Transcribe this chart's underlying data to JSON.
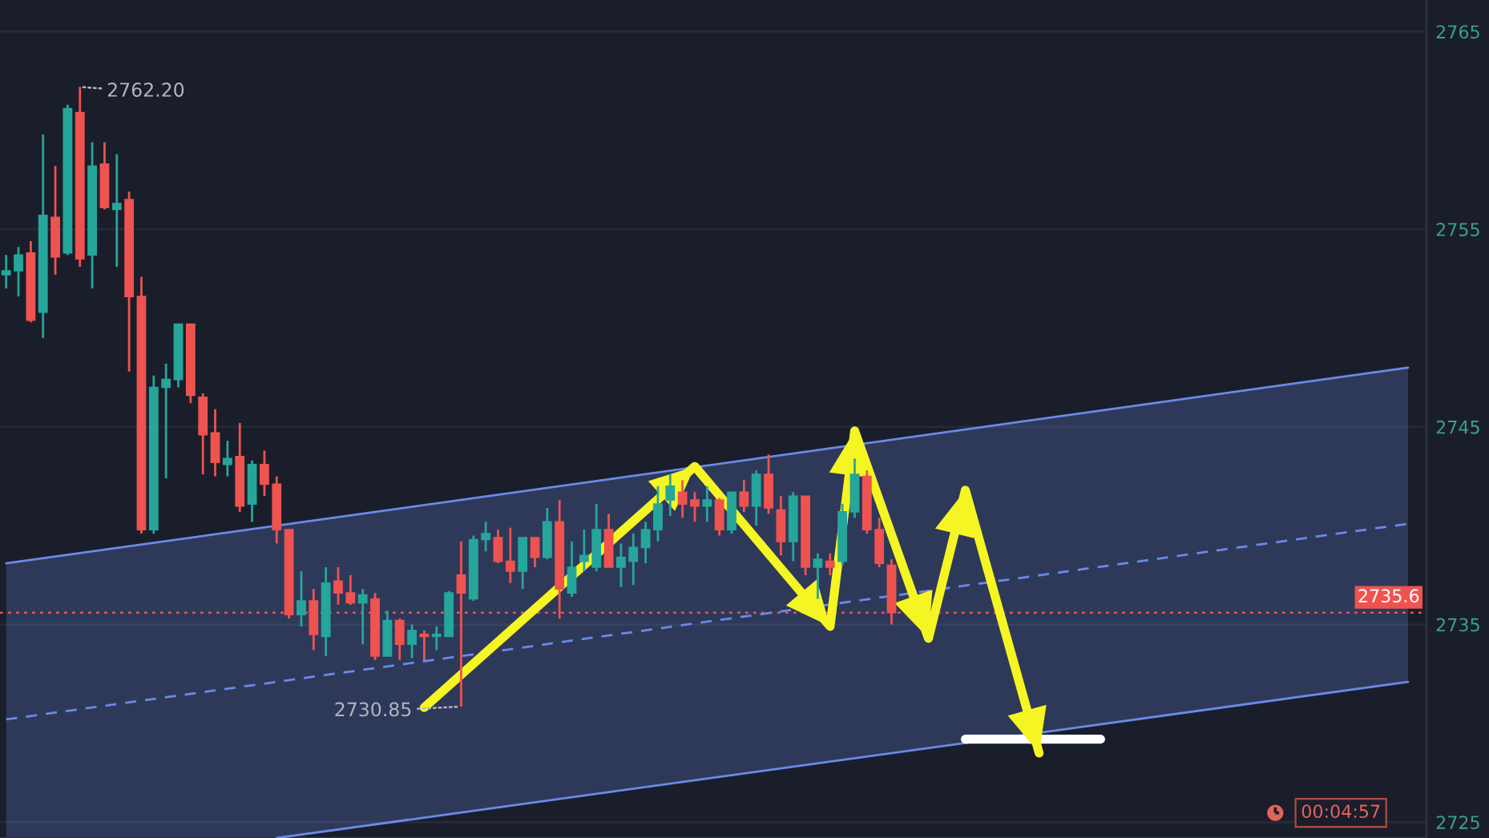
{
  "chart_data": {
    "type": "candlestick",
    "categories": [
      null,
      null,
      null,
      null,
      null,
      null,
      null,
      null,
      null,
      null,
      null,
      null,
      null,
      null,
      null,
      null,
      null,
      null,
      null,
      null,
      null,
      null,
      null,
      null,
      null,
      null,
      null,
      null,
      null,
      null,
      null,
      null,
      null,
      null,
      null,
      null,
      null,
      null,
      null,
      null,
      null,
      null,
      null,
      null,
      null,
      null,
      null,
      null,
      null,
      null,
      null,
      null,
      null,
      null,
      null,
      null,
      null,
      null,
      null,
      null,
      null,
      null,
      null,
      null,
      null,
      null,
      null,
      null,
      null,
      null,
      null,
      null,
      null,
      null,
      null,
      null,
      null,
      null,
      null,
      null,
      null,
      null,
      null,
      null,
      null,
      null,
      null,
      null,
      null,
      null,
      null,
      null,
      null,
      null,
      null,
      null,
      null,
      null,
      null,
      null,
      null,
      null,
      null,
      null,
      null,
      null,
      null,
      null,
      null,
      null,
      null,
      null,
      null,
      null,
      null,
      null
    ],
    "ohlc": [
      [
        2752.7,
        2753.7,
        2752.0,
        2752.9
      ],
      [
        2752.9,
        2754.1,
        2751.6,
        2753.7
      ],
      [
        2753.8,
        2754.4,
        2750.3,
        2750.4
      ],
      [
        2750.8,
        2759.8,
        2749.5,
        2755.7
      ],
      [
        2755.6,
        2758.2,
        2752.7,
        2753.6
      ],
      [
        2753.8,
        2761.3,
        2753.7,
        2761.1
      ],
      [
        2760.9,
        2762.2,
        2753.1,
        2753.5
      ],
      [
        2753.7,
        2759.4,
        2752.0,
        2758.2
      ],
      [
        2758.3,
        2759.4,
        2756.0,
        2756.1
      ],
      [
        2756.0,
        2758.8,
        2753.1,
        2756.3
      ],
      [
        2756.5,
        2756.9,
        2747.8,
        2751.6
      ],
      [
        2751.6,
        2752.6,
        2739.6,
        2739.8
      ],
      [
        2739.8,
        2747.6,
        2739.6,
        2747.0
      ],
      [
        2747.0,
        2748.2,
        2742.4,
        2747.4
      ],
      [
        2747.4,
        2750.2,
        2747.0,
        2750.2
      ],
      [
        2750.2,
        2750.2,
        2746.2,
        2746.6
      ],
      [
        2746.5,
        2746.7,
        2742.6,
        2744.6
      ],
      [
        2744.7,
        2745.9,
        2742.5,
        2743.2
      ],
      [
        2743.1,
        2744.3,
        2742.5,
        2743.4
      ],
      [
        2743.5,
        2745.2,
        2740.7,
        2741.0
      ],
      [
        2741.1,
        2743.3,
        2740.2,
        2743.1
      ],
      [
        2743.1,
        2743.8,
        2741.5,
        2742.1
      ],
      [
        2742.1,
        2742.5,
        2739.1,
        2739.8
      ],
      [
        2739.8,
        2739.8,
        2735.3,
        2735.5
      ],
      [
        2735.5,
        2737.7,
        2734.9,
        2736.2
      ],
      [
        2736.2,
        2736.8,
        2733.7,
        2734.5
      ],
      [
        2734.4,
        2737.9,
        2733.4,
        2737.1
      ],
      [
        2737.2,
        2737.9,
        2736.0,
        2736.6
      ],
      [
        2736.6,
        2737.5,
        2736.0,
        2736.1
      ],
      [
        2736.1,
        2736.8,
        2734.0,
        2736.5
      ],
      [
        2736.3,
        2736.6,
        2733.2,
        2733.4
      ],
      [
        2733.4,
        2735.7,
        2733.4,
        2735.2
      ],
      [
        2735.2,
        2735.3,
        2733.2,
        2734.0
      ],
      [
        2734.0,
        2735.0,
        2733.3,
        2734.7
      ],
      [
        2734.5,
        2734.7,
        2733.2,
        2734.4
      ],
      [
        2734.4,
        2734.9,
        2733.7,
        2734.5
      ],
      [
        2734.4,
        2736.7,
        2734.4,
        2736.6
      ],
      [
        2737.5,
        2739.2,
        2730.85,
        2736.6
      ],
      [
        2736.3,
        2739.5,
        2736.2,
        2739.3
      ],
      [
        2739.3,
        2740.2,
        2738.7,
        2739.6
      ],
      [
        2739.4,
        2739.8,
        2738.1,
        2738.2
      ],
      [
        2738.2,
        2739.9,
        2737.1,
        2737.7
      ],
      [
        2737.7,
        2739.4,
        2736.8,
        2739.4
      ],
      [
        2739.4,
        2739.4,
        2737.9,
        2738.4
      ],
      [
        2738.4,
        2740.9,
        2738.3,
        2740.2
      ],
      [
        2740.2,
        2741.3,
        2735.3,
        2736.8
      ],
      [
        2736.6,
        2739.2,
        2736.4,
        2737.9
      ],
      [
        2738.2,
        2739.8,
        2737.7,
        2738.5
      ],
      [
        2737.9,
        2741.1,
        2737.7,
        2739.8
      ],
      [
        2739.8,
        2740.6,
        2737.9,
        2737.9
      ],
      [
        2737.9,
        2739.1,
        2736.9,
        2738.4
      ],
      [
        2738.2,
        2739.6,
        2737.0,
        2738.9
      ],
      [
        2738.9,
        2740.2,
        2738.1,
        2739.8
      ],
      [
        2739.8,
        2742.0,
        2739.2,
        2741.1
      ],
      [
        2741.3,
        2742.6,
        2740.5,
        2742.0
      ],
      [
        2741.7,
        2742.3,
        2740.4,
        2741.1
      ],
      [
        2741.3,
        2741.7,
        2740.2,
        2741.0
      ],
      [
        2741.0,
        2742.0,
        2740.2,
        2741.3
      ],
      [
        2741.3,
        2741.4,
        2739.5,
        2739.8
      ],
      [
        2739.8,
        2741.7,
        2739.6,
        2741.7
      ],
      [
        2741.7,
        2742.3,
        2740.7,
        2741.0
      ],
      [
        2741.0,
        2742.8,
        2740.0,
        2742.6
      ],
      [
        2742.6,
        2743.6,
        2740.6,
        2740.9
      ],
      [
        2740.8,
        2741.5,
        2738.5,
        2739.2
      ],
      [
        2739.2,
        2741.7,
        2738.2,
        2741.5
      ],
      [
        2741.5,
        2741.5,
        2737.5,
        2737.9
      ],
      [
        2737.9,
        2738.6,
        2736.3,
        2738.3
      ],
      [
        2738.2,
        2738.6,
        2737.5,
        2737.9
      ],
      [
        2738.2,
        2741.1,
        2738.0,
        2740.7
      ],
      [
        2740.7,
        2743.4,
        2740.4,
        2742.6
      ],
      [
        2742.5,
        2742.8,
        2739.6,
        2739.8
      ],
      [
        2739.8,
        2740.4,
        2737.9,
        2738.1
      ],
      [
        2738.0,
        2738.3,
        2735.0,
        2735.6
      ],
      null,
      null,
      null,
      null,
      null,
      null,
      null,
      null,
      null,
      null,
      null,
      null,
      null,
      null,
      null,
      null,
      null,
      null,
      null,
      null,
      null,
      null,
      null,
      null,
      null,
      null,
      null,
      null,
      null,
      null,
      null,
      null,
      null,
      null,
      null,
      null,
      null,
      null,
      null,
      null,
      null,
      null,
      null
    ],
    "colors": [
      "#26a69a",
      "#26a69a",
      "#ef5350",
      "#26a69a",
      "#ef5350",
      "#26a69a",
      "#ef5350",
      "#26a69a",
      "#ef5350",
      "#26a69a",
      "#ef5350",
      "#ef5350",
      "#26a69a",
      "#26a69a",
      "#26a69a",
      "#ef5350",
      "#ef5350",
      "#ef5350",
      "#26a69a",
      "#ef5350",
      "#26a69a",
      "#ef5350",
      "#ef5350",
      "#ef5350",
      "#26a69a",
      "#ef5350",
      "#26a69a",
      "#ef5350",
      "#ef5350",
      "#26a69a",
      "#ef5350",
      "#26a69a",
      "#ef5350",
      "#26a69a",
      "#ef5350",
      "#26a69a",
      "#26a69a",
      "#ef5350",
      "#26a69a",
      "#26a69a",
      "#ef5350",
      "#ef5350",
      "#26a69a",
      "#ef5350",
      "#26a69a",
      "#ef5350",
      "#26a69a",
      "#26a69a",
      "#26a69a",
      "#ef5350",
      "#26a69a",
      "#26a69a",
      "#26a69a",
      "#26a69a",
      "#26a69a",
      "#ef5350",
      "#ef5350",
      "#26a69a",
      "#ef5350",
      "#26a69a",
      "#ef5350",
      "#26a69a",
      "#ef5350",
      "#ef5350",
      "#26a69a",
      "#ef5350",
      "#26a69a",
      "#ef5350",
      "#26a69a",
      "#26a69a",
      "#ef5350",
      "#ef5350",
      "#ef5350",
      null,
      null,
      null,
      null,
      null,
      null,
      null,
      null,
      null,
      null,
      null,
      null,
      null,
      null,
      null,
      null,
      null,
      null,
      null,
      null,
      null,
      null,
      null,
      null,
      null,
      null,
      null,
      null,
      null,
      null,
      null,
      null,
      null,
      null,
      null,
      null,
      null,
      null,
      null,
      null,
      null,
      null,
      null
    ],
    "series": [
      {
        "type": "line",
        "color": "#6a8ae6",
        "line_style": "dashed",
        "values": [
          2730.2,
          null,
          null,
          null,
          null,
          null,
          null,
          null,
          null,
          null,
          null,
          null,
          null,
          null,
          null,
          null,
          null,
          null,
          null,
          null,
          null,
          null,
          2732.1,
          null,
          null,
          null,
          null,
          null,
          null,
          null,
          null,
          null,
          null,
          null,
          null,
          null,
          null,
          null,
          null,
          null,
          null,
          null,
          null,
          null,
          null,
          null,
          null,
          null,
          null,
          null,
          null,
          null,
          null,
          null,
          null,
          null,
          null,
          null,
          null,
          null,
          null,
          null,
          null,
          null,
          null,
          null,
          null,
          null,
          null,
          null,
          null,
          null,
          null,
          null,
          null,
          null,
          null,
          null,
          null,
          null,
          null,
          null,
          null,
          null,
          null,
          null,
          null,
          null,
          null,
          null,
          null,
          null,
          null,
          null,
          null,
          null,
          null,
          null,
          null,
          null,
          null,
          null,
          null,
          null,
          null,
          null,
          null,
          null,
          null,
          null,
          null,
          null,
          null,
          null,
          2740.1,
          null
        ],
        "lower": [
          2724.2,
          null,
          null,
          null,
          null,
          null,
          null,
          null,
          null,
          null,
          null,
          null,
          null,
          null,
          null,
          null,
          null,
          null,
          null,
          null,
          null,
          null,
          2724.2,
          null,
          null,
          null,
          null,
          null,
          null,
          null,
          null,
          null,
          null,
          null,
          null,
          null,
          null,
          null,
          null,
          null,
          null,
          null,
          null,
          null,
          null,
          null,
          null,
          null,
          null,
          null,
          null,
          null,
          null,
          null,
          null,
          null,
          null,
          null,
          null,
          null,
          null,
          null,
          null,
          null,
          null,
          null,
          null,
          null,
          null,
          null,
          null,
          null,
          null,
          null,
          null,
          null,
          null,
          null,
          null,
          null,
          null,
          null,
          null,
          null,
          null,
          null,
          null,
          null,
          null,
          null,
          null,
          null,
          null,
          null,
          null,
          null,
          null,
          null,
          null,
          null,
          null,
          null,
          null,
          null,
          null,
          null,
          null,
          null,
          null,
          null,
          null,
          null,
          null,
          null,
          2732.1,
          null
        ],
        "upper": [
          2738.1,
          null,
          null,
          null,
          null,
          null,
          null,
          null,
          null,
          null,
          null,
          null,
          null,
          null,
          null,
          null,
          null,
          null,
          null,
          null,
          null,
          null,
          2740.0,
          null,
          null,
          null,
          null,
          null,
          null,
          null,
          null,
          null,
          null,
          null,
          null,
          null,
          null,
          null,
          null,
          null,
          null,
          null,
          null,
          null,
          null,
          null,
          null,
          null,
          null,
          null,
          null,
          null,
          null,
          null,
          null,
          null,
          null,
          null,
          null,
          null,
          null,
          null,
          null,
          null,
          null,
          null,
          null,
          null,
          null,
          null,
          null,
          null,
          null,
          null,
          null,
          null,
          null,
          null,
          null,
          null,
          null,
          null,
          null,
          null,
          null,
          null,
          null,
          null,
          null,
          null,
          null,
          null,
          null,
          null,
          null,
          null,
          null,
          null,
          null,
          null,
          null,
          null,
          null,
          null,
          null,
          null,
          null,
          null,
          null,
          null,
          null,
          null,
          null,
          null,
          2748.0,
          null
        ]
      },
      {
        "type": "line",
        "color": "#6a8ae6",
        "line_style": "solid",
        "values": [
          2738.1,
          null,
          null,
          null,
          null,
          null,
          null,
          null,
          null,
          null,
          null,
          null,
          null,
          null,
          null,
          null,
          null,
          null,
          null,
          null,
          null,
          null,
          2740.0,
          null,
          null,
          null,
          null,
          null,
          null,
          null,
          null,
          null,
          null,
          null,
          null,
          null,
          null,
          null,
          null,
          null,
          null,
          null,
          null,
          null,
          null,
          null,
          null,
          null,
          null,
          null,
          null,
          null,
          null,
          null,
          null,
          null,
          null,
          null,
          null,
          null,
          null,
          null,
          null,
          null,
          null,
          null,
          null,
          null,
          null,
          null,
          null,
          null,
          null,
          null,
          null,
          null,
          null,
          null,
          null,
          null,
          null,
          null,
          null,
          null,
          null,
          null,
          null,
          null,
          null,
          null,
          null,
          null,
          null,
          null,
          null,
          null,
          null,
          null,
          null,
          null,
          null,
          null,
          null,
          null,
          null,
          null,
          null,
          null,
          null,
          null,
          null,
          null,
          null,
          null,
          2748.0,
          null
        ]
      },
      {
        "type": "line",
        "color": "#6a8ae6",
        "line_style": "solid",
        "values": [
          null,
          null,
          null,
          null,
          null,
          null,
          null,
          null,
          null,
          null,
          null,
          null,
          null,
          null,
          null,
          null,
          null,
          null,
          null,
          null,
          null,
          null,
          2724.2,
          null,
          null,
          null,
          null,
          null,
          null,
          null,
          null,
          null,
          null,
          null,
          null,
          null,
          null,
          null,
          null,
          null,
          null,
          null,
          null,
          null,
          null,
          null,
          null,
          null,
          null,
          null,
          null,
          null,
          null,
          null,
          null,
          null,
          null,
          null,
          null,
          null,
          null,
          null,
          null,
          null,
          null,
          null,
          null,
          null,
          null,
          null,
          null,
          null,
          null,
          null,
          null,
          null,
          null,
          null,
          null,
          null,
          null,
          null,
          null,
          null,
          null,
          null,
          null,
          null,
          null,
          null,
          null,
          null,
          null,
          null,
          null,
          null,
          null,
          null,
          null,
          null,
          null,
          null,
          null,
          null,
          null,
          null,
          null,
          null,
          null,
          null,
          null,
          null,
          null,
          null,
          2732.1,
          null
        ]
      },
      {
        "type": "line",
        "color": "#f5f523",
        "values": [
          null,
          null,
          null,
          null,
          null,
          null,
          null,
          null,
          null,
          null,
          null,
          null,
          null,
          null,
          null,
          null,
          null,
          null,
          null,
          null,
          null,
          null,
          null,
          null,
          null,
          null,
          null,
          null,
          null,
          null,
          null,
          null,
          null,
          null,
          2730.8,
          null,
          null,
          null,
          null,
          null,
          null,
          null,
          null,
          null,
          null,
          null,
          null,
          null,
          null,
          null,
          null,
          null,
          null,
          null,
          null,
          null,
          2743.0,
          null,
          null,
          null,
          null,
          null,
          null,
          null,
          null,
          null,
          null,
          2734.9,
          null,
          2744.8,
          null,
          null,
          null,
          null,
          null,
          2734.3,
          null,
          null,
          2741.8,
          null,
          null,
          null,
          null,
          null,
          2728.5,
          null,
          null,
          null,
          null,
          null,
          null,
          null,
          null,
          null,
          null,
          null,
          null,
          null,
          null,
          null,
          null,
          null,
          null,
          null,
          null,
          null,
          null,
          null,
          null,
          null,
          null,
          null,
          null,
          null,
          null,
          null
        ]
      },
      {
        "type": "line",
        "color": "#ffffff",
        "values": [
          null,
          null,
          null,
          null,
          null,
          null,
          null,
          null,
          null,
          null,
          null,
          null,
          null,
          null,
          null,
          null,
          null,
          null,
          null,
          null,
          null,
          null,
          null,
          null,
          null,
          null,
          null,
          null,
          null,
          null,
          null,
          null,
          null,
          null,
          null,
          null,
          null,
          null,
          null,
          null,
          null,
          null,
          null,
          null,
          null,
          null,
          null,
          null,
          null,
          null,
          null,
          null,
          null,
          null,
          null,
          null,
          null,
          null,
          null,
          null,
          null,
          null,
          null,
          null,
          null,
          null,
          null,
          null,
          null,
          null,
          null,
          null,
          null,
          null,
          null,
          null,
          null,
          null,
          2729.2,
          null,
          null,
          null,
          null,
          null,
          null,
          null,
          null,
          null,
          null,
          2729.2,
          null,
          null,
          null,
          null,
          null,
          null,
          null,
          null,
          null,
          null,
          null,
          null,
          null,
          null,
          null,
          null,
          null,
          null,
          null,
          null,
          null,
          null,
          null,
          null,
          null,
          null
        ]
      }
    ],
    "ref_lines": [
      {
        "axis": "y",
        "value": 2735.6,
        "label": "2735.6",
        "color": "#ef5350",
        "line_style": "dotted"
      }
    ],
    "annotations": [
      "2762.20",
      "2730.85",
      "00:04:57"
    ],
    "ylim": [
      2724.2,
      2766.6
    ],
    "yticks": [
      2765,
      2755,
      2745,
      2735,
      2725
    ],
    "tick_labels": "y",
    "grid": "y"
  }
}
